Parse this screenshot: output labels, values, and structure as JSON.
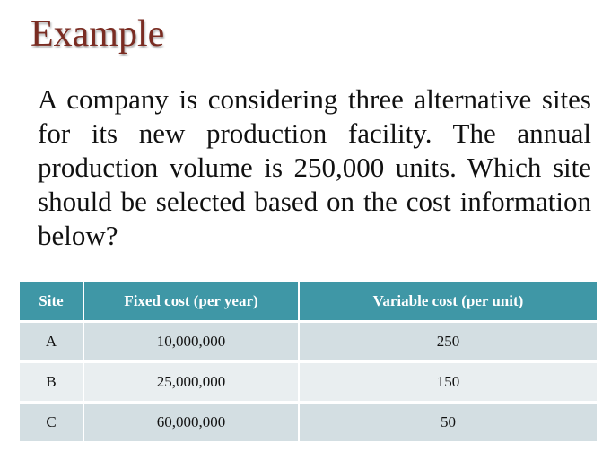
{
  "slide": {
    "title": "Example",
    "body": "A company is considering three alternative sites for its new production facility. The annual production volume is 250,000 units. Which site should be selected based on the cost information below?"
  },
  "table": {
    "headers": [
      "Site",
      "Fixed cost (per year)",
      "Variable cost (per unit)"
    ],
    "rows": [
      [
        "A",
        "10,000,000",
        "250"
      ],
      [
        "B",
        "25,000,000",
        "150"
      ],
      [
        "C",
        "60,000,000",
        "50"
      ]
    ]
  },
  "colors": {
    "title": "#7a2c22",
    "header_bg": "#3f97a6",
    "row_odd_bg": "#d3dee2",
    "row_even_bg": "#e9eef0"
  }
}
